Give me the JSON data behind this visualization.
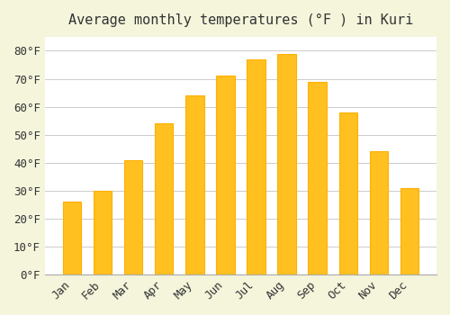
{
  "title": "Average monthly temperatures (°F ) in Kuri",
  "months": [
    "Jan",
    "Feb",
    "Mar",
    "Apr",
    "May",
    "Jun",
    "Jul",
    "Aug",
    "Sep",
    "Oct",
    "Nov",
    "Dec"
  ],
  "values": [
    26,
    30,
    41,
    54,
    64,
    71,
    77,
    79,
    69,
    58,
    44,
    31
  ],
  "bar_color": "#FFC020",
  "bar_edge_color": "#FFB000",
  "background_color": "#F5F5DC",
  "plot_bg_color": "#FFFFFF",
  "grid_color": "#CCCCCC",
  "text_color": "#333333",
  "ylim": [
    0,
    85
  ],
  "yticks": [
    0,
    10,
    20,
    30,
    40,
    50,
    60,
    70,
    80
  ],
  "title_fontsize": 11,
  "tick_fontsize": 9,
  "font_family": "monospace"
}
